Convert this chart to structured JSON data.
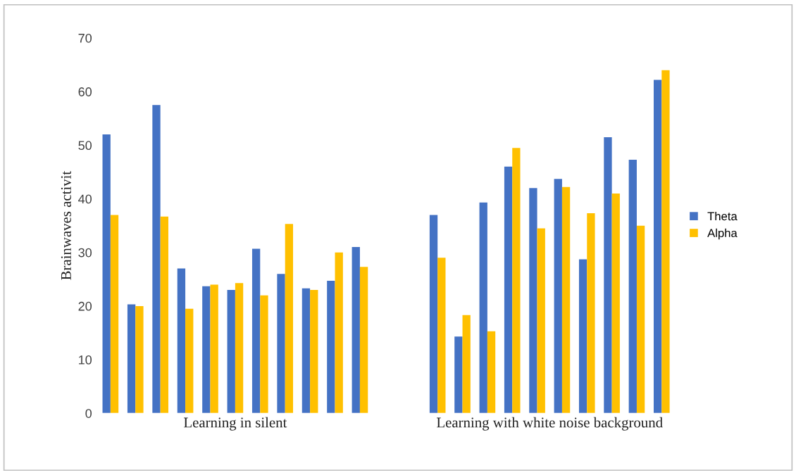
{
  "chart_data": [
    {
      "type": "bar",
      "ylabel": "Brainwaves activit",
      "xlabel": "Learning in silent",
      "categories": [
        null,
        null,
        null,
        null,
        null,
        null,
        null,
        null,
        null,
        null,
        null
      ],
      "series": [
        {
          "color": "#4472c4",
          "values": [
            52,
            20.3,
            57.5,
            27,
            23.7,
            23,
            30.7,
            26,
            23.3,
            24.7,
            31
          ]
        },
        {
          "color": "#ffc000",
          "values": [
            37,
            20,
            36.7,
            19.5,
            24,
            24.3,
            22,
            35.3,
            23,
            30,
            27.3
          ]
        }
      ],
      "ylim": [
        0,
        70
      ],
      "yticks": [
        0,
        10,
        20,
        30,
        40,
        50,
        60,
        70
      ],
      "grid": false
    },
    {
      "type": "bar",
      "xlabel": "Learning with white noise background",
      "categories": [
        null,
        null,
        null,
        null,
        null,
        null,
        null,
        null,
        null,
        null
      ],
      "series": [
        {
          "name": "Theta",
          "color": "#4472c4",
          "values": [
            37,
            14.3,
            39.3,
            46,
            42,
            43.7,
            28.7,
            51.5,
            47.3,
            62.2
          ]
        },
        {
          "name": "Alpha",
          "color": "#ffc000",
          "values": [
            29,
            18.3,
            15.3,
            49.5,
            34.5,
            42.2,
            37.3,
            41,
            35,
            64
          ]
        }
      ],
      "ylim": [
        0,
        70
      ],
      "yticks": [
        0,
        10,
        20,
        30,
        40,
        50,
        60,
        70
      ],
      "tick_labels": false,
      "grid": false,
      "legend": "right"
    }
  ]
}
